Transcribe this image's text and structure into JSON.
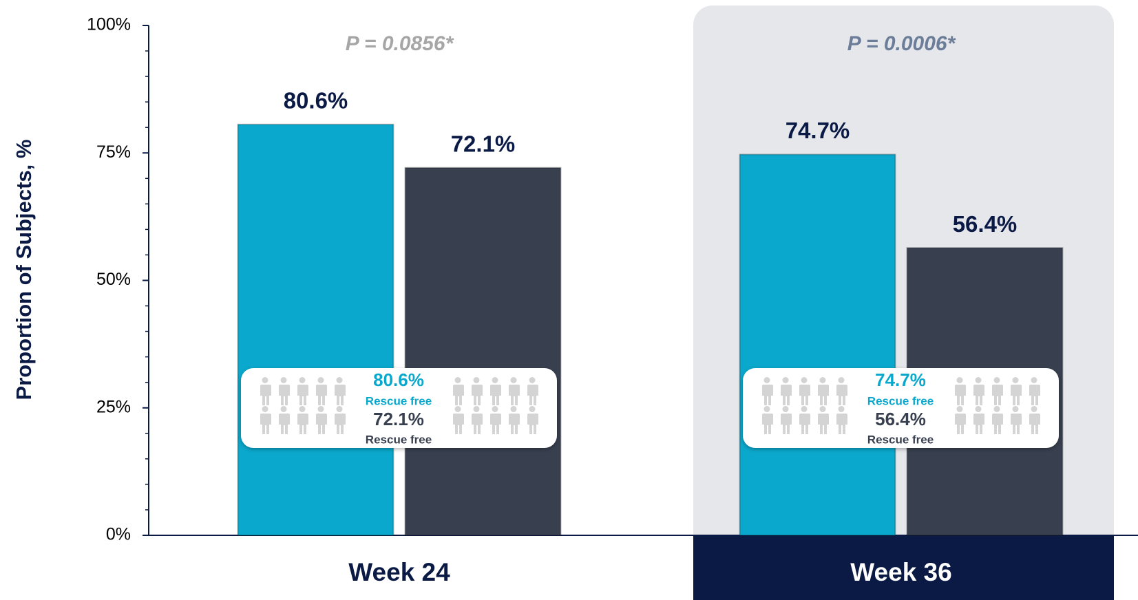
{
  "chart_data": {
    "type": "bar",
    "y_label": "Proportion of Subjects, %",
    "categories": [
      "Week 24",
      "Week 36"
    ],
    "series": [
      {
        "color": "#0aa8cc",
        "icon_color": "#6aaed6",
        "values": [
          80.6,
          74.7
        ],
        "value_labels": [
          "80.6%",
          "74.7%"
        ]
      },
      {
        "color": "#383f4f",
        "icon_color": "#000000",
        "values": [
          72.1,
          56.4
        ],
        "value_labels": [
          "72.1%",
          "56.4%"
        ]
      }
    ],
    "annotations": [
      {
        "text": "P = 0.0856*",
        "color": "#a6a6a6"
      },
      {
        "text": "P = 0.0006*",
        "color": "#6b7d99"
      }
    ],
    "inset_caption": "Rescue free",
    "ylim": [
      0,
      100
    ],
    "yticks": [
      {
        "value": 0,
        "label": "0%"
      },
      {
        "value": 25,
        "label": "25%"
      },
      {
        "value": 50,
        "label": "50%"
      },
      {
        "value": 75,
        "label": "75%"
      },
      {
        "value": 100,
        "label": "100%"
      }
    ],
    "minor_yticks": [
      5,
      10,
      15,
      20,
      30,
      35,
      40,
      45,
      55,
      60,
      65,
      70,
      80,
      85,
      90,
      95
    ]
  }
}
